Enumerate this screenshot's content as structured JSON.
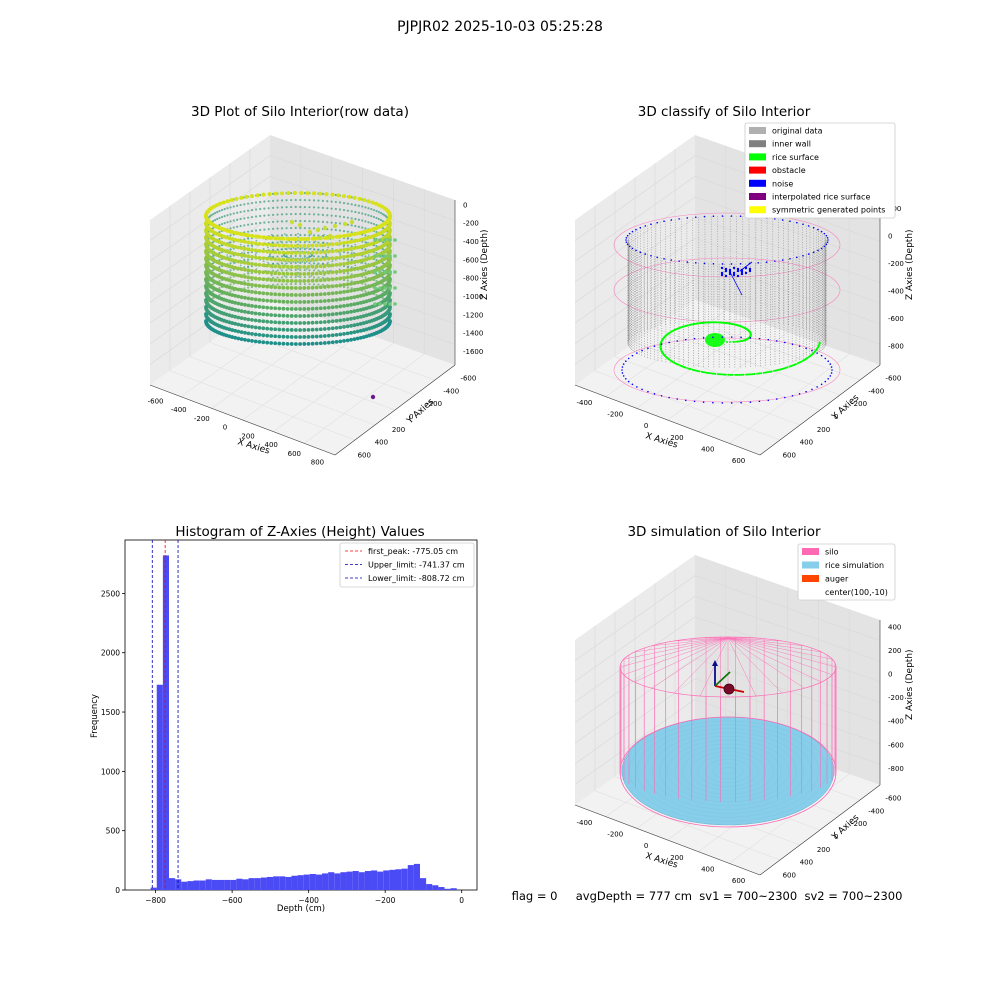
{
  "figure": {
    "suptitle": "PJPJR02 2025-10-03 05:25:28",
    "status_line": "flag = 0     avgDepth = 777 cm  sv1 = 700~2300  sv2 = 700~2300"
  },
  "colors": {
    "raw_low": "#1f8f8a",
    "raw_high": "#d7e21a",
    "inner_wall": "#808080",
    "rice_surface": "#00ff00",
    "noise": "#0000ff",
    "obstacle": "#ff0000",
    "interpolated": "#800080",
    "symmetric": "#ffff00",
    "original": "#b0b0b0",
    "silo": "#ff69b4",
    "rice_sim": "#87ceeb",
    "auger": "#ff4500",
    "hist_bar": "#4b4bf5",
    "peak_line": "#ff0000",
    "limit_line": "#0000aa"
  },
  "chart_data": [
    {
      "type": "scatter3d",
      "title": "3D Plot of Silo Interior(row data)",
      "xlabel": "X Axies",
      "ylabel": "Y Axies",
      "zlabel": "Z Axies (Depth)",
      "x_ticks": [
        "-600",
        "-400",
        "-200",
        "0",
        "200",
        "400",
        "600",
        "800"
      ],
      "y_ticks": [
        "-600",
        "-400",
        "-200",
        "0",
        "200",
        "400",
        "600"
      ],
      "z_ticks": [
        "0",
        "-200",
        "-400",
        "-600",
        "-800",
        "-1000",
        "-1200",
        "-1400",
        "-1600"
      ],
      "cylinder": {
        "center": [
          0,
          0
        ],
        "radius": 600,
        "z_top": -250,
        "z_bottom": -1550
      }
    },
    {
      "type": "scatter3d",
      "title": "3D classify of Silo Interior",
      "xlabel": "X Axies",
      "ylabel": "Y Axies",
      "zlabel": "Z Axies (Depth)",
      "x_ticks": [
        "-400",
        "-200",
        "0",
        "200",
        "400",
        "600"
      ],
      "y_ticks": [
        "-600",
        "-400",
        "-200",
        "0",
        "200",
        "400",
        "600"
      ],
      "z_ticks": [
        "200",
        "0",
        "-200",
        "-400",
        "-600",
        "-800"
      ],
      "legend": [
        "original data",
        "inner wall",
        "rice surface",
        "obstacle",
        "noise",
        "interpolated rice surface",
        "symmetric generated points"
      ],
      "legend_colors": [
        "original",
        "inner_wall",
        "rice_surface",
        "obstacle",
        "noise",
        "interpolated",
        "symmetric"
      ]
    },
    {
      "type": "bar",
      "title": "Histogram of Z-Axies (Height) Values",
      "xlabel": "Depth (cm)",
      "ylabel": "Frequency",
      "xlim": [
        -880,
        40
      ],
      "ylim": [
        0,
        2950
      ],
      "x_ticks": [
        -800,
        -600,
        -400,
        -200,
        0
      ],
      "y_ticks": [
        0,
        500,
        1000,
        1500,
        2000,
        2500
      ],
      "bin_width": 16,
      "bin_starts": [
        -813,
        -797,
        -781,
        -765,
        -749,
        -733,
        -717,
        -701,
        -685,
        -669,
        -653,
        -637,
        -621,
        -605,
        -589,
        -573,
        -557,
        -541,
        -525,
        -509,
        -493,
        -477,
        -461,
        -445,
        -429,
        -413,
        -397,
        -381,
        -365,
        -349,
        -333,
        -317,
        -301,
        -285,
        -269,
        -253,
        -237,
        -221,
        -205,
        -189,
        -173,
        -157,
        -141,
        -125,
        -109,
        -93,
        -77,
        -61,
        -45,
        -29,
        -13
      ],
      "values": [
        20,
        1730,
        2820,
        100,
        90,
        70,
        75,
        80,
        80,
        90,
        85,
        85,
        85,
        85,
        95,
        90,
        100,
        100,
        105,
        110,
        115,
        115,
        110,
        120,
        125,
        130,
        135,
        130,
        140,
        150,
        140,
        150,
        155,
        160,
        150,
        160,
        165,
        155,
        165,
        170,
        175,
        180,
        210,
        220,
        100,
        50,
        40,
        25,
        10,
        15,
        0
      ],
      "vlines": [
        {
          "name": "first_peak: -775.05 cm",
          "value": -775.05,
          "color": "peak_line"
        },
        {
          "name": "Upper_limit: -741.37 cm",
          "value": -741.37,
          "color": "limit_line"
        },
        {
          "name": "Lower_limit: -808.72 cm",
          "value": -808.72,
          "color": "limit_line"
        }
      ]
    },
    {
      "type": "scatter3d",
      "title": "3D simulation of Silo Interior",
      "xlabel": "X Axies",
      "ylabel": "Y Axies",
      "zlabel": "Z Axies (Depth)",
      "x_ticks": [
        "-400",
        "-200",
        "0",
        "200",
        "400",
        "600"
      ],
      "y_ticks": [
        "-600",
        "-400",
        "-200",
        "0",
        "200",
        "400",
        "600"
      ],
      "z_ticks": [
        "400",
        "200",
        "0",
        "-200",
        "-400",
        "-600",
        "-800"
      ],
      "legend": [
        "silo",
        "rice simulation",
        "auger",
        "center(100,-10)"
      ],
      "legend_colors": [
        "silo",
        "rice_sim",
        "auger",
        ""
      ]
    }
  ]
}
